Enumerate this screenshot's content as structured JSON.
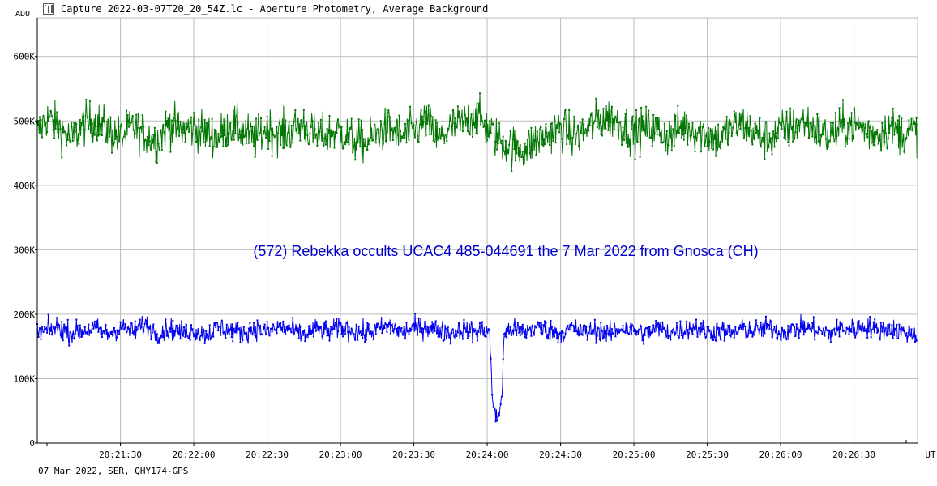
{
  "window": {
    "title": "Capture 2022-03-07T20_20_54Z.lc - Aperture Photometry, Average Background",
    "icon": "chart-icon"
  },
  "footer": "07 Mar 2022, SER, QHY174-GPS",
  "chart_data": {
    "type": "line",
    "title": "",
    "xlabel": "UT",
    "ylabel": "ADU",
    "x_range": [
      "20:20:56",
      "20:26:56"
    ],
    "ylim": [
      0,
      660000
    ],
    "grid": true,
    "x_tick_labels": [
      "20:21:30",
      "20:22:00",
      "20:22:30",
      "20:23:00",
      "20:23:30",
      "20:24:00",
      "20:24:30",
      "20:25:00",
      "20:25:30",
      "20:26:00",
      "20:26:30"
    ],
    "y_tick_values": [
      0,
      100000,
      200000,
      300000,
      400000,
      500000,
      600000
    ],
    "y_tick_labels": [
      "0",
      "100K",
      "200K",
      "300K",
      "400K",
      "500K",
      "600K"
    ],
    "annotation": "(572) Rebekka occults UCAC4 485-044691 the 7 Mar 2022 from Gnosca (CH)",
    "annotation_color": "#0000cc",
    "series": [
      {
        "color": "#007700",
        "description": "comparison star, mean ~485K ADU, noise ~±40K",
        "points": [
          [
            "20:20:56",
            480000
          ],
          [
            "20:21:00",
            505000
          ],
          [
            "20:21:05",
            490000
          ],
          [
            "20:21:10",
            470000
          ],
          [
            "20:21:15",
            495000
          ],
          [
            "20:21:20",
            500000
          ],
          [
            "20:21:25",
            485000
          ],
          [
            "20:21:30",
            475000
          ],
          [
            "20:21:35",
            490000
          ],
          [
            "20:21:40",
            480000
          ],
          [
            "20:21:45",
            470000
          ],
          [
            "20:21:50",
            495000
          ],
          [
            "20:21:55",
            485000
          ],
          [
            "20:22:00",
            490000
          ],
          [
            "20:22:05",
            480000
          ],
          [
            "20:22:10",
            475000
          ],
          [
            "20:22:15",
            495000
          ],
          [
            "20:22:20",
            485000
          ],
          [
            "20:22:25",
            470000
          ],
          [
            "20:22:30",
            490000
          ],
          [
            "20:22:35",
            480000
          ],
          [
            "20:22:40",
            485000
          ],
          [
            "20:22:45",
            495000
          ],
          [
            "20:22:50",
            475000
          ],
          [
            "20:22:55",
            480000
          ],
          [
            "20:23:00",
            485000
          ],
          [
            "20:23:05",
            470000
          ],
          [
            "20:23:10",
            465000
          ],
          [
            "20:23:15",
            480000
          ],
          [
            "20:23:20",
            490000
          ],
          [
            "20:23:25",
            475000
          ],
          [
            "20:23:30",
            485000
          ],
          [
            "20:23:35",
            500000
          ],
          [
            "20:23:40",
            470000
          ],
          [
            "20:23:45",
            490000
          ],
          [
            "20:23:50",
            495000
          ],
          [
            "20:23:55",
            510000
          ],
          [
            "20:24:00",
            490000
          ],
          [
            "20:24:05",
            470000
          ],
          [
            "20:24:10",
            460000
          ],
          [
            "20:24:15",
            455000
          ],
          [
            "20:24:20",
            470000
          ],
          [
            "20:24:25",
            480000
          ],
          [
            "20:24:30",
            490000
          ],
          [
            "20:24:35",
            475000
          ],
          [
            "20:24:40",
            485000
          ],
          [
            "20:24:45",
            500000
          ],
          [
            "20:24:50",
            505000
          ],
          [
            "20:24:55",
            495000
          ],
          [
            "20:25:00",
            480000
          ],
          [
            "20:25:05",
            490000
          ],
          [
            "20:25:10",
            485000
          ],
          [
            "20:25:15",
            475000
          ],
          [
            "20:25:20",
            495000
          ],
          [
            "20:25:25",
            485000
          ],
          [
            "20:25:30",
            480000
          ],
          [
            "20:25:35",
            470000
          ],
          [
            "20:25:40",
            490000
          ],
          [
            "20:25:45",
            495000
          ],
          [
            "20:25:50",
            480000
          ],
          [
            "20:25:55",
            470000
          ],
          [
            "20:26:00",
            485000
          ],
          [
            "20:26:05",
            490000
          ],
          [
            "20:26:10",
            500000
          ],
          [
            "20:26:15",
            485000
          ],
          [
            "20:26:20",
            475000
          ],
          [
            "20:26:25",
            490000
          ],
          [
            "20:26:30",
            495000
          ],
          [
            "20:26:35",
            485000
          ],
          [
            "20:26:40",
            480000
          ],
          [
            "20:26:45",
            490000
          ],
          [
            "20:26:50",
            480000
          ],
          [
            "20:26:56",
            485000
          ]
        ]
      },
      {
        "color": "#0000ee",
        "description": "target star, mean ~175K ADU, occultation drop to ~40K near 20:24:05",
        "points": [
          [
            "20:20:56",
            170000
          ],
          [
            "20:21:00",
            175000
          ],
          [
            "20:21:05",
            180000
          ],
          [
            "20:21:10",
            170000
          ],
          [
            "20:21:15",
            175000
          ],
          [
            "20:21:20",
            178000
          ],
          [
            "20:21:25",
            168000
          ],
          [
            "20:21:30",
            180000
          ],
          [
            "20:21:35",
            172000
          ],
          [
            "20:21:40",
            185000
          ],
          [
            "20:21:45",
            170000
          ],
          [
            "20:21:50",
            178000
          ],
          [
            "20:21:55",
            172000
          ],
          [
            "20:22:00",
            175000
          ],
          [
            "20:22:05",
            168000
          ],
          [
            "20:22:10",
            180000
          ],
          [
            "20:22:15",
            175000
          ],
          [
            "20:22:20",
            170000
          ],
          [
            "20:22:25",
            178000
          ],
          [
            "20:22:30",
            172000
          ],
          [
            "20:22:35",
            180000
          ],
          [
            "20:22:40",
            175000
          ],
          [
            "20:22:45",
            168000
          ],
          [
            "20:22:50",
            177000
          ],
          [
            "20:22:55",
            172000
          ],
          [
            "20:23:00",
            180000
          ],
          [
            "20:23:05",
            175000
          ],
          [
            "20:23:10",
            170000
          ],
          [
            "20:23:15",
            176000
          ],
          [
            "20:23:20",
            182000
          ],
          [
            "20:23:25",
            172000
          ],
          [
            "20:23:30",
            178000
          ],
          [
            "20:23:35",
            180000
          ],
          [
            "20:23:40",
            175000
          ],
          [
            "20:23:45",
            170000
          ],
          [
            "20:23:50",
            178000
          ],
          [
            "20:23:55",
            172000
          ],
          [
            "20:24:00",
            176000
          ],
          [
            "20:24:01",
            170000
          ],
          [
            "20:24:02",
            80000
          ],
          [
            "20:24:03",
            45000
          ],
          [
            "20:24:04",
            35000
          ],
          [
            "20:24:05",
            50000
          ],
          [
            "20:24:06",
            75000
          ],
          [
            "20:24:07",
            170000
          ],
          [
            "20:24:10",
            178000
          ],
          [
            "20:24:15",
            172000
          ],
          [
            "20:24:20",
            180000
          ],
          [
            "20:24:25",
            175000
          ],
          [
            "20:24:30",
            170000
          ],
          [
            "20:24:35",
            178000
          ],
          [
            "20:24:40",
            172000
          ],
          [
            "20:24:45",
            176000
          ],
          [
            "20:24:50",
            168000
          ],
          [
            "20:24:55",
            180000
          ],
          [
            "20:25:00",
            175000
          ],
          [
            "20:25:05",
            170000
          ],
          [
            "20:25:10",
            178000
          ],
          [
            "20:25:15",
            172000
          ],
          [
            "20:25:20",
            176000
          ],
          [
            "20:25:25",
            180000
          ],
          [
            "20:25:30",
            172000
          ],
          [
            "20:25:35",
            175000
          ],
          [
            "20:25:40",
            170000
          ],
          [
            "20:25:45",
            178000
          ],
          [
            "20:25:50",
            174000
          ],
          [
            "20:25:55",
            180000
          ],
          [
            "20:26:00",
            172000
          ],
          [
            "20:26:05",
            176000
          ],
          [
            "20:26:10",
            180000
          ],
          [
            "20:26:15",
            175000
          ],
          [
            "20:26:20",
            170000
          ],
          [
            "20:26:25",
            178000
          ],
          [
            "20:26:30",
            176000
          ],
          [
            "20:26:35",
            182000
          ],
          [
            "20:26:40",
            175000
          ],
          [
            "20:26:45",
            178000
          ],
          [
            "20:26:50",
            172000
          ],
          [
            "20:26:56",
            168000
          ]
        ]
      }
    ]
  }
}
